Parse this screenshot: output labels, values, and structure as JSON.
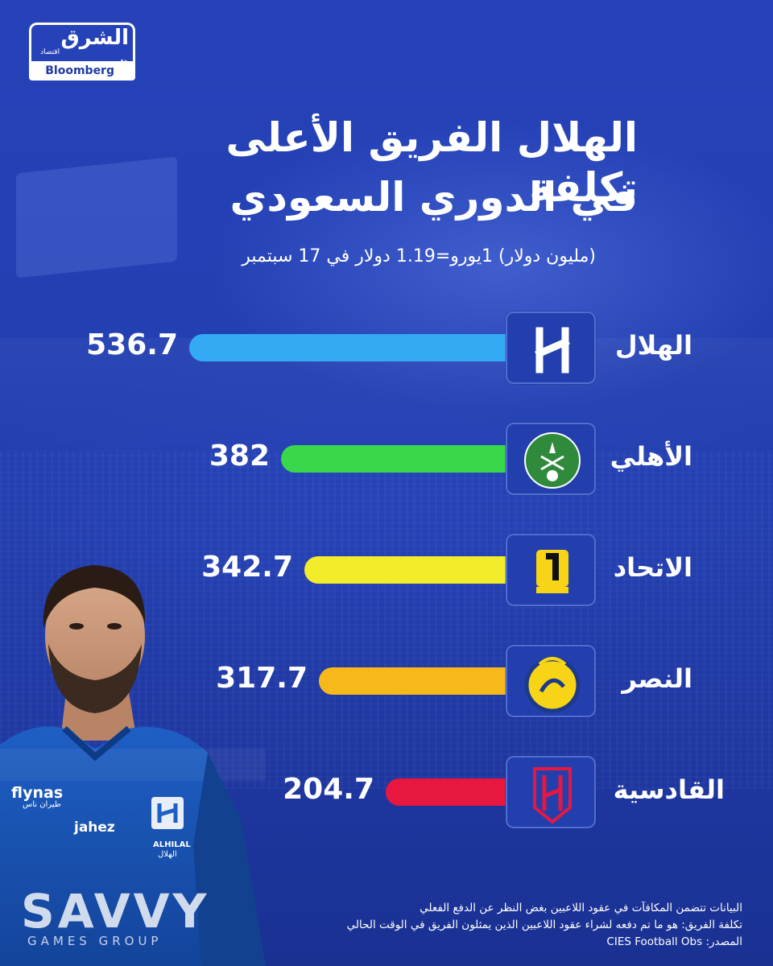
{
  "brand": {
    "name": "الشرق",
    "sub": "اقتصاد",
    "with": "مع",
    "partner": "Bloomberg"
  },
  "headline": {
    "line1": "الهلال الفريق الأعلى تكلفة",
    "line2": "في الدوري السعودي",
    "subtitle": "(مليون دولار) 1يورو=1.19 دولار في 17 سبتمبر"
  },
  "chart_data": {
    "type": "bar",
    "orientation": "horizontal",
    "categories": [
      "الهلال",
      "الأهلي",
      "الاتحاد",
      "النصر",
      "القادسية"
    ],
    "values": [
      536.7,
      382,
      342.7,
      317.7,
      204.7
    ],
    "value_labels": [
      "536.7",
      "382",
      "342.7",
      "317.7",
      "204.7"
    ],
    "bar_colors": [
      "#34aaf5",
      "#39d84a",
      "#f3ec2a",
      "#f7b81a",
      "#e8173f"
    ],
    "icons": [
      "alhilal-crest-icon",
      "alahli-crest-icon",
      "alittihad-crest-icon",
      "alnassr-crest-icon",
      "alqadsiah-crest-icon"
    ],
    "xlim": [
      0,
      536.7
    ],
    "grid": false
  },
  "player": {
    "sponsor_airline": "flynas",
    "sponsor_airline_ar": "طيران ناس",
    "kit_brand": "jahez",
    "club": "ALHILAL",
    "club_ar": "الهلال",
    "shirt_sponsor": "SAVVY",
    "shirt_sponsor_sub": "GAMES GROUP"
  },
  "notes": {
    "line1": "البيانات تتضمن المكافآت في عقود اللاعبين بغض النظر عن الدفع الفعلي",
    "line2": "تكلفة الفريق: هو ما تم دفعه لشراء عقود اللاعبين الذين يمثلون الفريق في الوقت الحالي",
    "line3": "المصدر: CIES Football Obs"
  },
  "colors": {
    "background": "#2340b4",
    "badge": "#233fae",
    "text": "#ffffff"
  }
}
